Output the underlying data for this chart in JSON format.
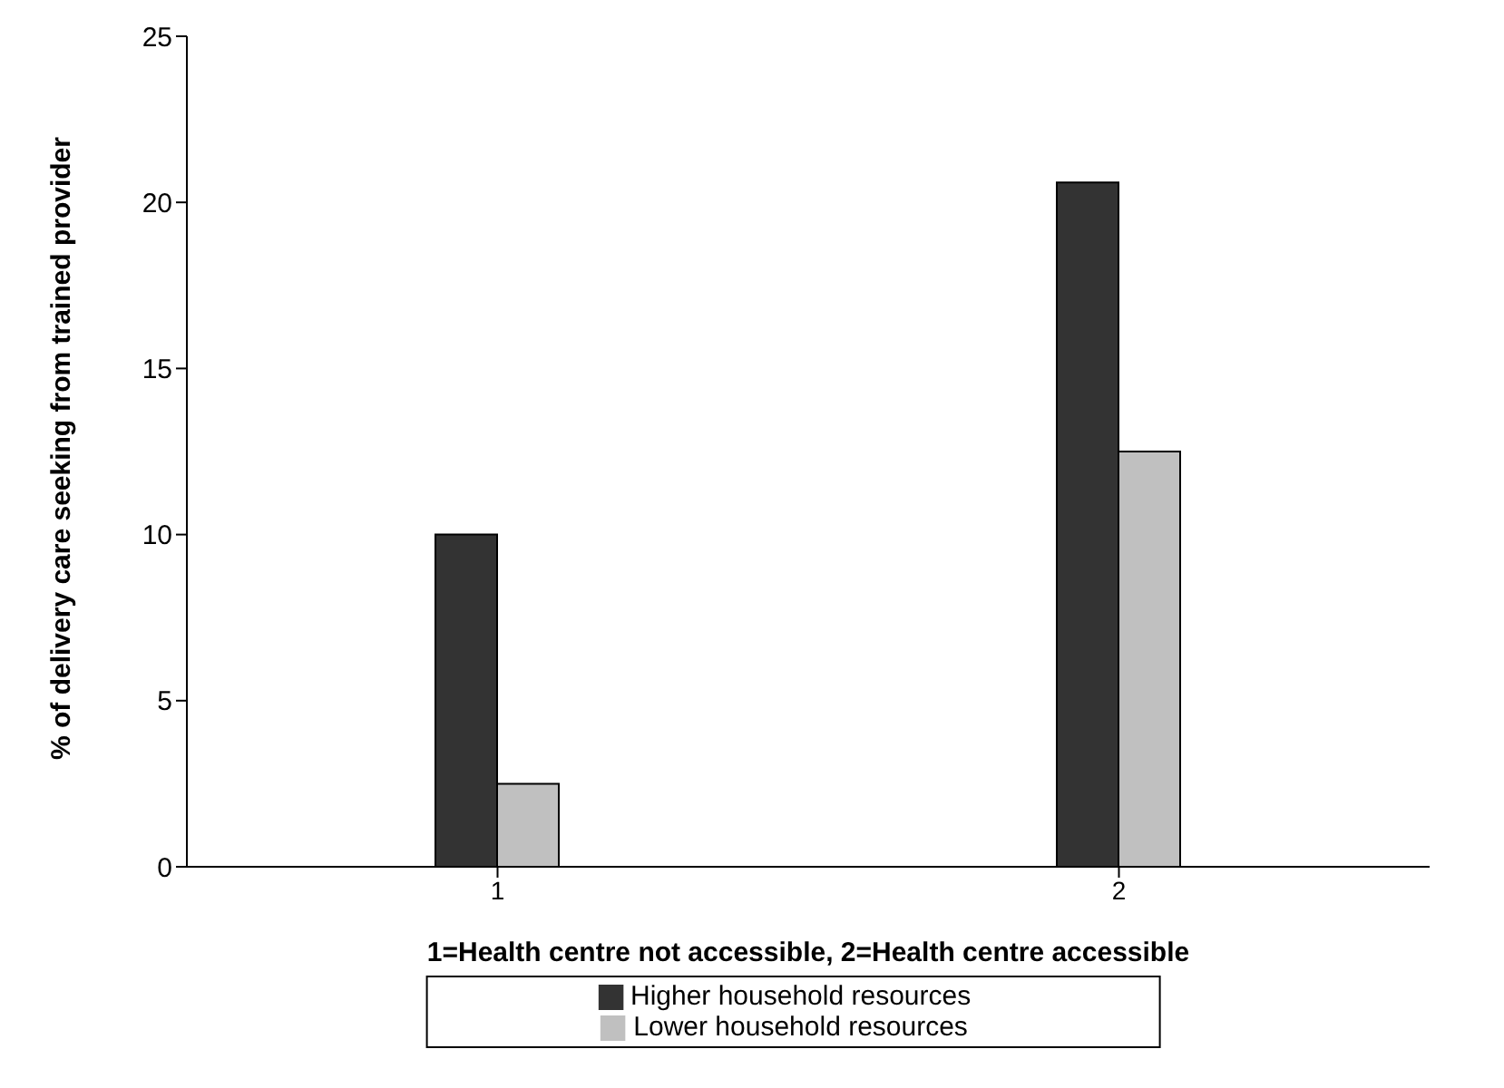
{
  "chart_data": {
    "type": "bar",
    "xlabel": "1=Health centre not accessible, 2=Health centre accessible",
    "ylabel": "% of delivery care seeking from trained provider",
    "categories": [
      "1",
      "2"
    ],
    "series": [
      {
        "name": "Higher household resources",
        "color": "#333333",
        "values": [
          10,
          20.6
        ]
      },
      {
        "name": "Lower household resources",
        "color": "#c0c0c0",
        "values": [
          2.5,
          12.5
        ]
      }
    ],
    "ylim": [
      0,
      25
    ],
    "yticks": [
      0,
      5,
      10,
      15,
      20,
      25
    ],
    "grid": false,
    "legend": "bottom"
  }
}
